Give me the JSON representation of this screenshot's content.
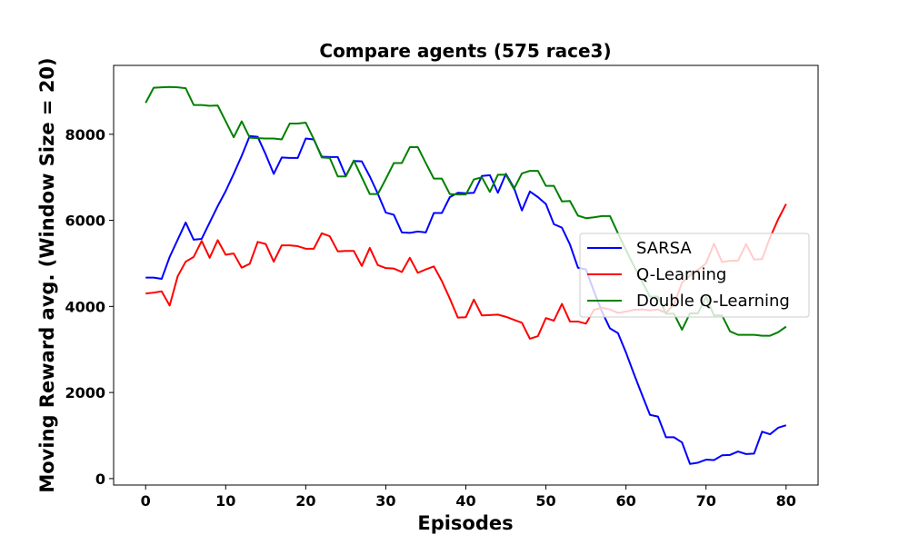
{
  "chart_data": {
    "type": "line",
    "title": "Compare agents (575 race3)",
    "xlabel": "Episodes",
    "ylabel": "Moving Reward avg. (Window Size = 20)",
    "xlim": [
      -4,
      84
    ],
    "ylim": [
      -150,
      9600
    ],
    "xticks": [
      0,
      10,
      20,
      30,
      40,
      50,
      60,
      70,
      80
    ],
    "yticks": [
      0,
      2000,
      4000,
      6000,
      8000
    ],
    "grid": false,
    "legend_position": "center-right",
    "series": [
      {
        "name": "SARSA",
        "color": "#0000ff",
        "x": [
          0,
          1,
          2,
          3,
          4,
          5,
          6,
          7,
          8,
          9,
          10,
          11,
          12,
          13,
          14,
          15,
          16,
          17,
          18,
          19,
          20,
          21,
          22,
          23,
          24,
          25,
          26,
          27,
          28,
          29,
          30,
          31,
          32,
          33,
          34,
          35,
          36,
          37,
          38,
          39,
          40,
          41,
          42,
          43,
          44,
          45,
          46,
          47,
          48,
          49,
          50,
          51,
          52,
          53,
          54,
          55,
          56,
          57,
          58,
          59,
          60,
          61,
          62,
          63,
          64,
          65,
          66,
          67,
          68,
          69,
          70,
          71,
          72,
          73,
          74,
          75,
          76,
          77,
          78,
          79,
          80
        ],
        "y": [
          4670,
          4670,
          4640,
          5150,
          5550,
          5950,
          5550,
          5570,
          5950,
          6330,
          6680,
          7080,
          7500,
          7960,
          7940,
          7530,
          7080,
          7460,
          7450,
          7450,
          7900,
          7880,
          7480,
          7470,
          7470,
          7030,
          7380,
          7370,
          7020,
          6620,
          6180,
          6130,
          5720,
          5710,
          5740,
          5720,
          6170,
          6170,
          6540,
          6640,
          6630,
          6640,
          7030,
          7050,
          6640,
          7080,
          6760,
          6230,
          6670,
          6540,
          6380,
          5910,
          5830,
          5440,
          4900,
          4860,
          4350,
          3880,
          3490,
          3380,
          2930,
          2430,
          1950,
          1480,
          1440,
          960,
          960,
          840,
          340,
          370,
          440,
          430,
          540,
          550,
          630,
          570,
          580,
          1090,
          1030,
          1180,
          1240
        ]
      },
      {
        "name": "Q-Learning",
        "color": "#ff0000",
        "x": [
          0,
          1,
          2,
          3,
          4,
          5,
          6,
          7,
          8,
          9,
          10,
          11,
          12,
          13,
          14,
          15,
          16,
          17,
          18,
          19,
          20,
          21,
          22,
          23,
          24,
          25,
          26,
          27,
          28,
          29,
          30,
          31,
          32,
          33,
          34,
          35,
          36,
          37,
          38,
          39,
          40,
          41,
          42,
          43,
          44,
          45,
          46,
          47,
          48,
          49,
          50,
          51,
          52,
          53,
          54,
          55,
          56,
          57,
          58,
          59,
          60,
          61,
          62,
          63,
          64,
          65,
          66,
          67,
          68,
          69,
          70,
          71,
          72,
          73,
          74,
          75,
          76,
          77,
          78,
          79,
          80
        ],
        "y": [
          4300,
          4320,
          4350,
          4020,
          4700,
          5040,
          5150,
          5520,
          5130,
          5540,
          5200,
          5230,
          4900,
          4990,
          5500,
          5450,
          5040,
          5420,
          5420,
          5400,
          5340,
          5340,
          5700,
          5630,
          5280,
          5290,
          5290,
          4940,
          5360,
          4960,
          4890,
          4880,
          4800,
          5130,
          4780,
          4860,
          4930,
          4590,
          4180,
          3740,
          3750,
          4160,
          3790,
          3800,
          3810,
          3760,
          3690,
          3620,
          3250,
          3310,
          3730,
          3670,
          4060,
          3650,
          3650,
          3600,
          3920,
          3970,
          3930,
          3850,
          3880,
          3920,
          3930,
          3910,
          3930,
          3850,
          4050,
          4550,
          4720,
          4850,
          5000,
          5460,
          5030,
          5060,
          5060,
          5450,
          5090,
          5100,
          5600,
          6020,
          6380
        ]
      },
      {
        "name": "Double Q-Learning",
        "color": "#008000",
        "x": [
          0,
          1,
          2,
          3,
          4,
          5,
          6,
          7,
          8,
          9,
          10,
          11,
          12,
          13,
          14,
          15,
          16,
          17,
          18,
          19,
          20,
          21,
          22,
          23,
          24,
          25,
          26,
          27,
          28,
          29,
          30,
          31,
          32,
          33,
          34,
          35,
          36,
          37,
          38,
          39,
          40,
          41,
          42,
          43,
          44,
          45,
          46,
          47,
          48,
          49,
          50,
          51,
          52,
          53,
          54,
          55,
          56,
          57,
          58,
          59,
          60,
          61,
          62,
          63,
          64,
          65,
          66,
          67,
          68,
          69,
          70,
          71,
          72,
          73,
          74,
          75,
          76,
          77,
          78,
          79,
          80
        ],
        "y": [
          8730,
          9080,
          9090,
          9100,
          9090,
          9070,
          8680,
          8680,
          8660,
          8670,
          8300,
          7930,
          8300,
          7920,
          7910,
          7900,
          7900,
          7880,
          8250,
          8250,
          8270,
          7890,
          7460,
          7450,
          7020,
          7020,
          7390,
          7000,
          6610,
          6610,
          6960,
          7330,
          7330,
          7700,
          7700,
          7330,
          6970,
          6970,
          6610,
          6600,
          6600,
          6950,
          7000,
          6660,
          7060,
          7060,
          6730,
          7090,
          7150,
          7150,
          6800,
          6800,
          6440,
          6450,
          6110,
          6050,
          6070,
          6100,
          6100,
          5700,
          5310,
          4940,
          4580,
          4230,
          4230,
          3830,
          3830,
          3460,
          3840,
          3840,
          4220,
          3790,
          3790,
          3420,
          3340,
          3340,
          3340,
          3320,
          3320,
          3400,
          3530
        ]
      }
    ]
  }
}
